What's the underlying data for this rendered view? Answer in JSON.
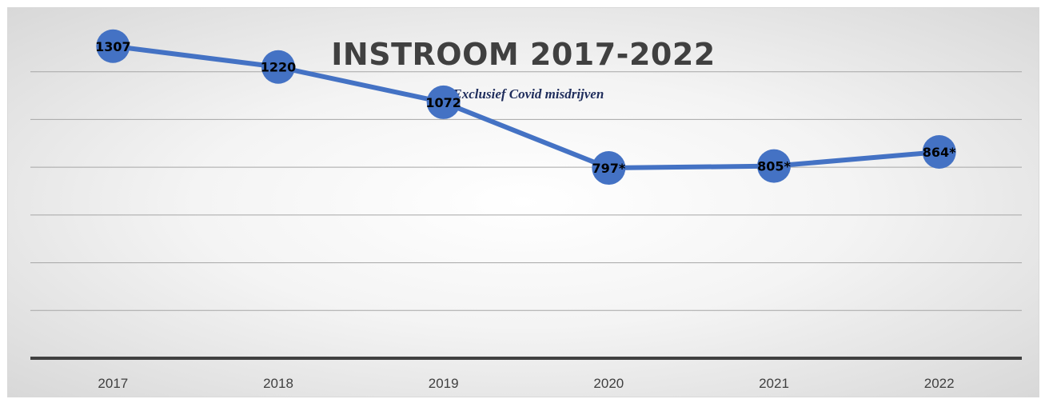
{
  "chart_data": {
    "type": "line",
    "title": "INSTROOM 2017-2022",
    "subtitle": "* Exclusief Covid misdrijven",
    "categories": [
      "2017",
      "2018",
      "2019",
      "2020",
      "2021",
      "2022"
    ],
    "series": [
      {
        "values": [
          1307,
          1220,
          1072,
          797,
          805,
          864
        ],
        "labels": [
          "1307",
          "1220",
          "1072",
          "797*",
          "805*",
          "864*"
        ],
        "color": "#4472c4"
      }
    ],
    "ylim": [
      0,
      1400
    ],
    "grid": true,
    "legend": "none"
  }
}
